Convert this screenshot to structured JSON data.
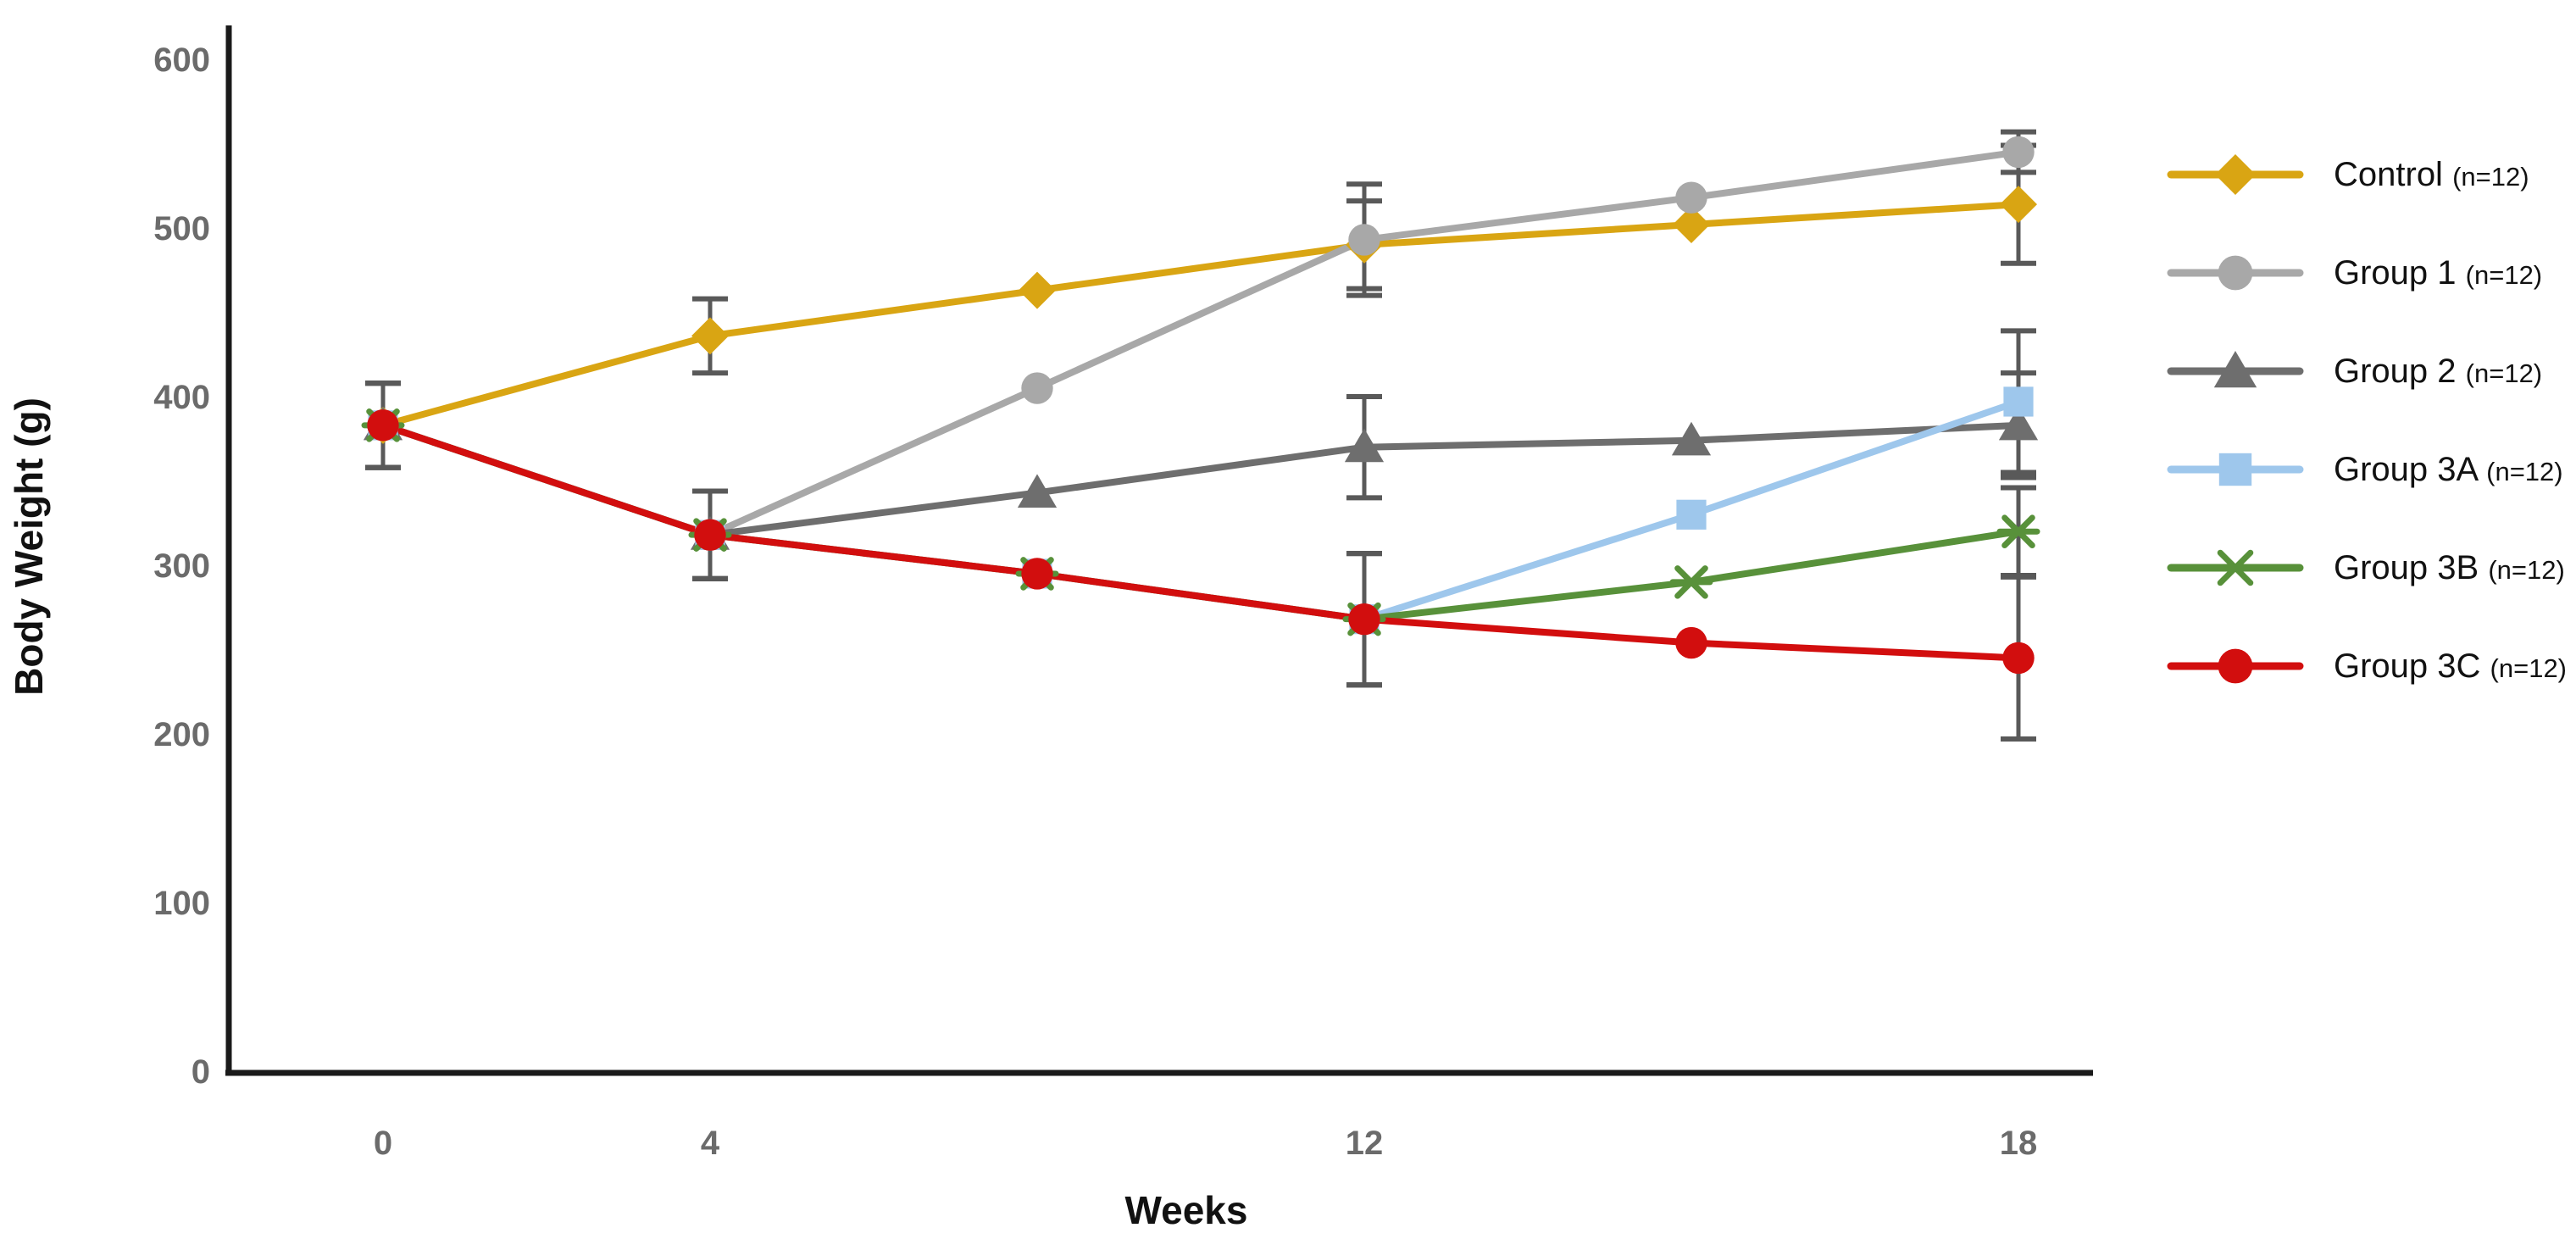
{
  "chart_data": {
    "type": "line",
    "title": "",
    "xlabel": "Weeks",
    "ylabel": "Body Weight (g)",
    "x_values": [
      0,
      4,
      8,
      12,
      15,
      18
    ],
    "x_tick_labels_shown": [
      "0",
      "4",
      "12",
      "18"
    ],
    "x_tick_point_indices": [
      0,
      1,
      3,
      5
    ],
    "yticks": [
      0,
      100,
      200,
      300,
      400,
      500,
      600
    ],
    "ylim": [
      0,
      600
    ],
    "grid": "off",
    "legend_position": "right",
    "error_bars": "shown at weeks 0, 4, 12, 18",
    "series": [
      {
        "name": "Control",
        "n_label": "(n=12)",
        "color": "#D9A513",
        "marker": "diamond",
        "values": [
          383,
          436,
          463,
          490,
          502,
          514
        ],
        "errors": [
          25,
          22,
          0,
          26,
          0,
          35
        ]
      },
      {
        "name": "Group 1",
        "n_label": "(n=12)",
        "color": "#A8A8A8",
        "marker": "circle",
        "values": [
          383,
          318,
          405,
          493,
          518,
          545
        ],
        "errors": [
          25,
          26,
          0,
          33,
          0,
          12
        ]
      },
      {
        "name": "Group 2",
        "n_label": "(n=12)",
        "color": "#6E6E6E",
        "marker": "triangle",
        "values": [
          383,
          318,
          343,
          370,
          374,
          383
        ],
        "errors": [
          25,
          26,
          0,
          30,
          0,
          31
        ]
      },
      {
        "name": "Group 3A",
        "n_label": "(n=12)",
        "color": "#9EC7EC",
        "marker": "square",
        "values": [
          383,
          318,
          295,
          268,
          330,
          397
        ],
        "errors": [
          25,
          26,
          0,
          39,
          0,
          42
        ]
      },
      {
        "name": "Group 3B",
        "n_label": "(n=12)",
        "color": "#58913A",
        "marker": "asterisk",
        "values": [
          383,
          318,
          295,
          268,
          290,
          320
        ],
        "errors": [
          25,
          26,
          0,
          39,
          0,
          26
        ]
      },
      {
        "name": "Group 3C",
        "n_label": "(n=12)",
        "color": "#D20E0E",
        "marker": "circle",
        "values": [
          383,
          318,
          295,
          268,
          254,
          245
        ],
        "errors": [
          25,
          26,
          0,
          39,
          0,
          48
        ]
      }
    ],
    "colors": {
      "axis_line": "#1a1a1a",
      "tick_label": "#6b6b6b",
      "axis_title": "#111111",
      "error_bar": "#595959",
      "background": "#ffffff"
    }
  }
}
